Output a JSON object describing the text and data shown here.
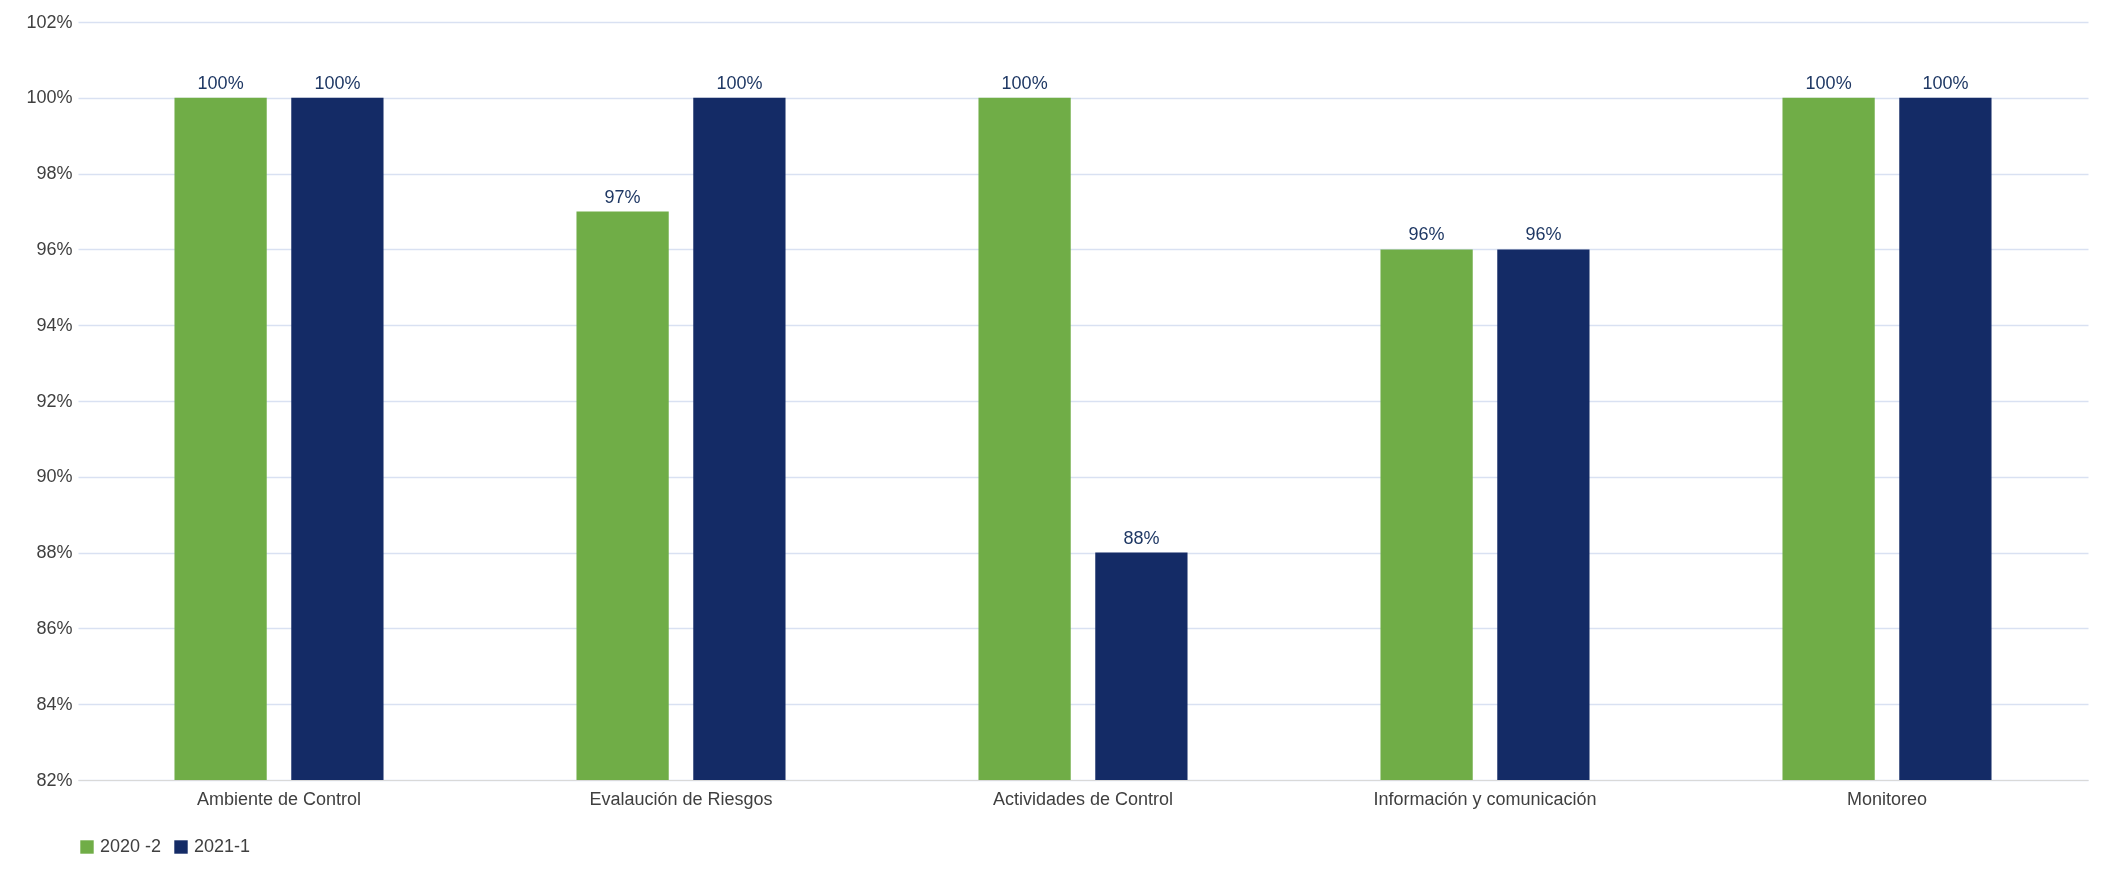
{
  "chart_data": {
    "type": "bar",
    "categories": [
      "Ambiente de Control",
      "Evalaución de Riesgos",
      "Actividades de Control",
      "Información y comunicación",
      "Monitoreo"
    ],
    "series": [
      {
        "name": "2020 -2",
        "color": "#70ad47",
        "values": [
          100,
          97,
          100,
          96,
          100
        ],
        "value_labels": [
          "100%",
          "97%",
          "100%",
          "96%",
          "100%"
        ]
      },
      {
        "name": "2021-1",
        "color": "#142b66",
        "values": [
          100,
          100,
          88,
          96,
          100
        ],
        "value_labels": [
          "100%",
          "100%",
          "88%",
          "96%",
          "100%"
        ]
      }
    ],
    "ylim": [
      82,
      102
    ],
    "yticks": [
      {
        "value": 82,
        "label": "82%"
      },
      {
        "value": 84,
        "label": "84%"
      },
      {
        "value": 86,
        "label": "86%"
      },
      {
        "value": 88,
        "label": "88%"
      },
      {
        "value": 90,
        "label": "90%"
      },
      {
        "value": 92,
        "label": "92%"
      },
      {
        "value": 94,
        "label": "94%"
      },
      {
        "value": 96,
        "label": "96%"
      },
      {
        "value": 98,
        "label": "98%"
      },
      {
        "value": 100,
        "label": "100%"
      },
      {
        "value": 102,
        "label": "102%"
      }
    ],
    "grid": "y",
    "legend": "bottom"
  }
}
